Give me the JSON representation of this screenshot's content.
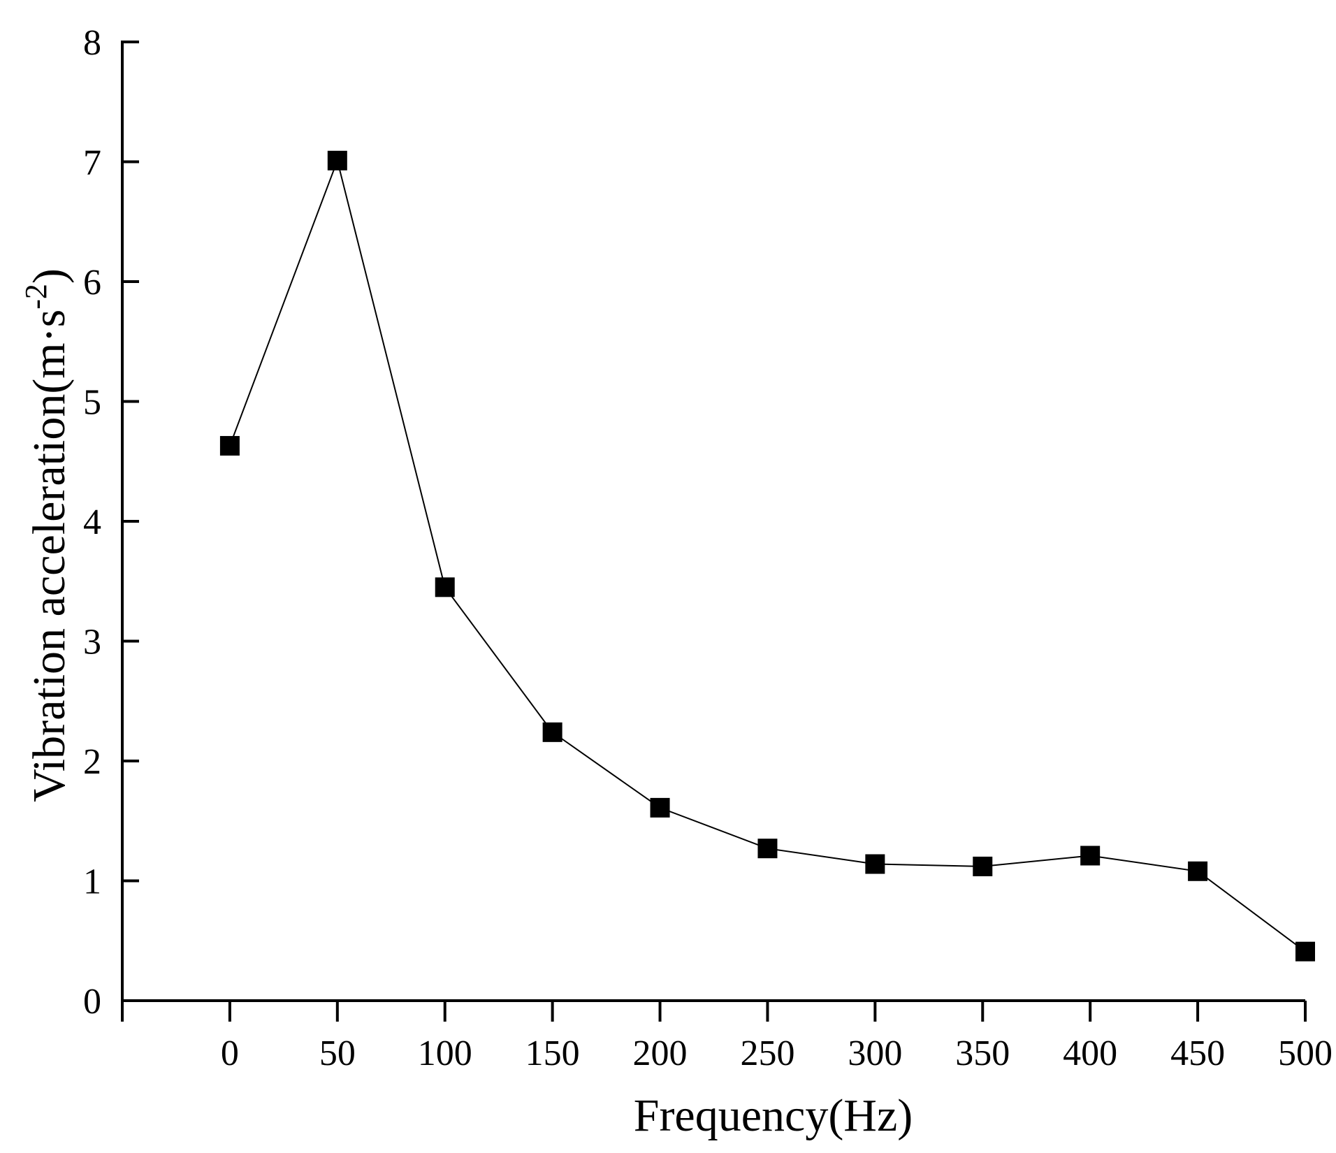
{
  "chart_data": {
    "type": "line",
    "title": "",
    "xlabel": "Frequency(Hz)",
    "ylabel": "Vibration acceleration(m·s-2)",
    "ylabel_parts": {
      "base": "Vibration acceleration(m·s",
      "superscript": "-2",
      "close": ")"
    },
    "x": [
      0,
      50,
      100,
      150,
      200,
      250,
      300,
      350,
      400,
      450,
      500
    ],
    "series": [
      {
        "values": [
          4.63,
          7.01,
          3.45,
          2.24,
          1.61,
          1.27,
          1.14,
          1.12,
          1.21,
          1.08,
          0.41
        ],
        "marker": "square",
        "color": "#000000"
      }
    ],
    "xticks": [
      "0",
      "50",
      "100",
      "150",
      "200",
      "250",
      "300",
      "350",
      "400",
      "450",
      "500"
    ],
    "yticks": [
      "0",
      "1",
      "2",
      "3",
      "4",
      "5",
      "6",
      "7",
      "8"
    ],
    "xlim": [
      -50,
      500
    ],
    "ylim": [
      0,
      8
    ],
    "grid": false,
    "legend": "none"
  }
}
